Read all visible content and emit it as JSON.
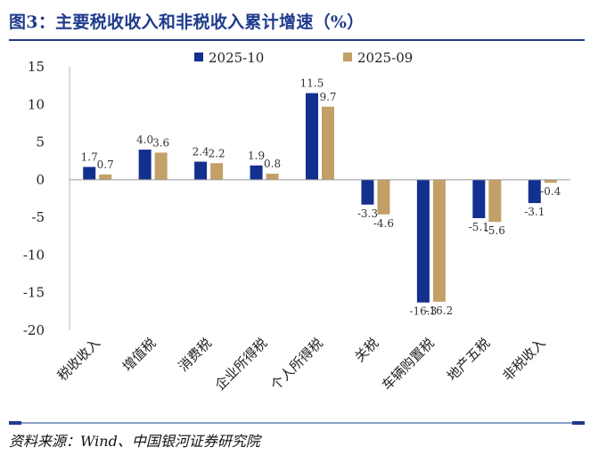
{
  "header": {
    "title": "图3：主要税收收入和非税收入累计增速（%）"
  },
  "footer": {
    "source": "资料来源：Wind、中国银河证券研究院"
  },
  "colors": {
    "series_2025_10": "#13308f",
    "series_2025_09": "#c2a068",
    "rule": "#1f3b8c"
  },
  "chart_data": {
    "type": "bar",
    "title": "主要税收收入和非税收入累计增速（%）",
    "xlabel": "",
    "ylabel": "",
    "ylim": [
      -20,
      15
    ],
    "yticks": [
      15,
      10,
      5,
      0,
      -5,
      -10,
      -15,
      -20
    ],
    "grid": false,
    "legend_position": "top-center",
    "categories": [
      "税收收入",
      "增值税",
      "消费税",
      "企业所得税",
      "个人所得税",
      "关税",
      "车辆购置税",
      "地产五税",
      "非税收入"
    ],
    "series": [
      {
        "name": "2025-10",
        "values": [
          1.7,
          4.0,
          2.4,
          1.9,
          11.5,
          -3.3,
          -16.3,
          -5.1,
          -3.1
        ],
        "labels": [
          "1.7",
          "4.0",
          "2.4",
          "1.9",
          "11.5",
          "-3.3",
          "-16.3",
          "-5.1",
          "-3.1"
        ]
      },
      {
        "name": "2025-09",
        "values": [
          0.7,
          3.6,
          2.2,
          0.8,
          9.7,
          -4.6,
          -16.2,
          -5.6,
          -0.4
        ],
        "labels": [
          "0.7",
          "3.6",
          "2.2",
          "0.8",
          "9.7",
          "-4.6",
          "-16.2",
          "-5.6",
          "-0.4"
        ]
      }
    ]
  }
}
